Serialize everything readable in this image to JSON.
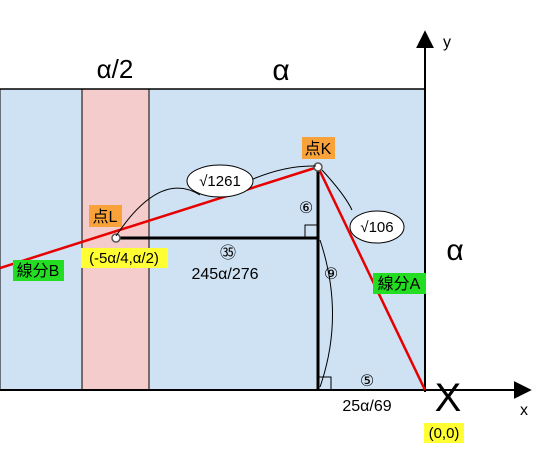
{
  "colors": {
    "region_blue": "#cfe2f3",
    "region_pink": "#f4cccc",
    "segment_red": "#e60000",
    "tag_orange": "#f9a23a",
    "tag_green": "#22dd22",
    "tag_yellow": "#ffff33"
  },
  "axes": {
    "y_label": "y",
    "x_label": "x"
  },
  "width_labels": {
    "half_alpha": "α/2",
    "alpha_top": "α",
    "alpha_right": "α"
  },
  "points": {
    "K": "点K",
    "L": "点L",
    "origin_mark": "X",
    "origin_coord": "(0,0)",
    "L_coord": "(-5α/4,α/2)"
  },
  "segments": {
    "A": "線分A",
    "B": "線分B"
  },
  "lengths": {
    "LK": "√1261",
    "KA": "√106",
    "horizontal_ratio": "㉟",
    "horizontal_value": "245α/276",
    "vertical_small_ratio": "⑥",
    "vertical_ratio": "⑨",
    "bottom_ratio": "⑤",
    "bottom_value": "25α/69"
  }
}
